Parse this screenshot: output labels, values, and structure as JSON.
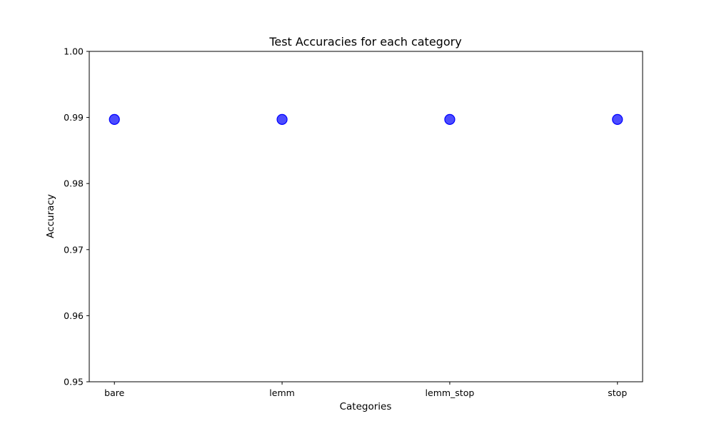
{
  "chart_data": {
    "type": "scatter",
    "title": "Test Accuracies for each category",
    "xlabel": "Categories",
    "ylabel": "Accuracy",
    "categories": [
      "bare",
      "lemm",
      "lemm_stop",
      "stop"
    ],
    "values": [
      0.9897,
      0.9897,
      0.9897,
      0.9897
    ],
    "ylim": [
      0.95,
      1.0
    ],
    "yticks": [
      "0.95",
      "0.96",
      "0.97",
      "0.98",
      "0.99",
      "1.00"
    ],
    "marker_color": "#0000ff",
    "marker_alpha": 0.7,
    "grid": false,
    "legend": null
  }
}
